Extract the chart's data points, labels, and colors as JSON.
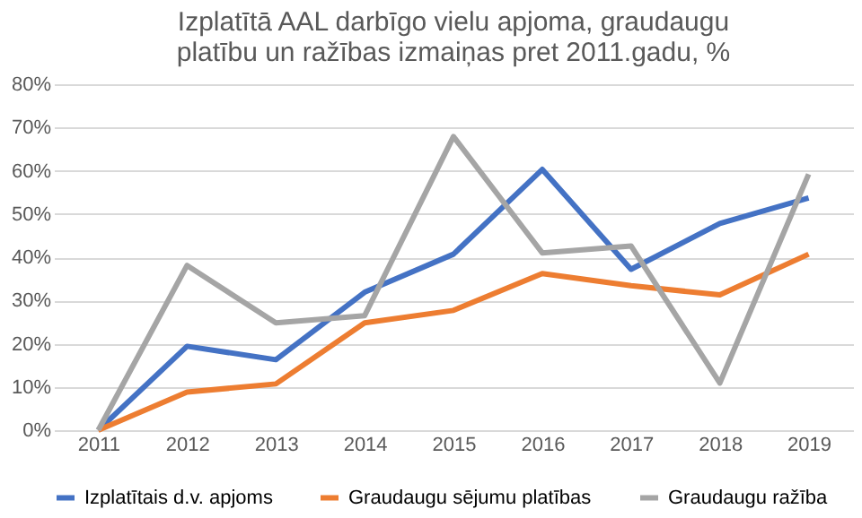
{
  "chart_data": {
    "type": "line",
    "title": "Izplatītā AAL darbīgo vielu apjoma, graudaugu platību un ražības izmaiņas pret 2011.gadu, %",
    "categories": [
      "2011",
      "2012",
      "2013",
      "2014",
      "2015",
      "2016",
      "2017",
      "2018",
      "2019"
    ],
    "series": [
      {
        "name": "Izplatītais d.v. apjoms",
        "color": "#4472c4",
        "values": [
          0,
          19.4,
          16.3,
          31.9,
          40.7,
          60.3,
          37.2,
          47.8,
          53.7
        ]
      },
      {
        "name": "Graudaugu sējumu platības",
        "color": "#ed7d31",
        "values": [
          0,
          8.8,
          10.7,
          24.8,
          27.7,
          36.2,
          33.4,
          31.3,
          40.7
        ]
      },
      {
        "name": "Graudaugu ražība",
        "color": "#a5a5a5",
        "values": [
          0,
          38.1,
          24.8,
          26.5,
          67.9,
          41.0,
          42.6,
          10.9,
          59.2
        ]
      }
    ],
    "ylim": [
      0,
      80
    ],
    "yticks": [
      {
        "value": 0,
        "label": "0%"
      },
      {
        "value": 10,
        "label": "10%"
      },
      {
        "value": 20,
        "label": "20%"
      },
      {
        "value": 30,
        "label": "30%"
      },
      {
        "value": 40,
        "label": "40%"
      },
      {
        "value": 50,
        "label": "50%"
      },
      {
        "value": 60,
        "label": "60%"
      },
      {
        "value": 70,
        "label": "70%"
      },
      {
        "value": 80,
        "label": "80%"
      }
    ],
    "grid": "y",
    "legend": "bottom",
    "marker": "none",
    "line_style": "solid"
  }
}
